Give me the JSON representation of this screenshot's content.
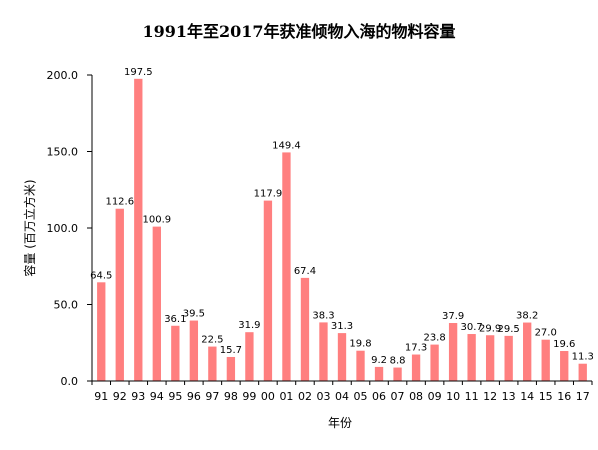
{
  "chart_data": {
    "type": "bar",
    "title": "1991年至2017年获准倾物入海的物料容量",
    "xlabel": "年份",
    "ylabel": "容量 (百万立方米)",
    "ylim": [
      0,
      200
    ],
    "y_ticks": [
      "0.0",
      "50.0",
      "100.0",
      "150.0",
      "200.0"
    ],
    "categories": [
      "91",
      "92",
      "93",
      "94",
      "95",
      "96",
      "97",
      "98",
      "99",
      "00",
      "01",
      "02",
      "03",
      "04",
      "05",
      "06",
      "07",
      "08",
      "09",
      "10",
      "11",
      "12",
      "13",
      "14",
      "15",
      "16",
      "17"
    ],
    "values": [
      64.5,
      112.6,
      197.5,
      100.9,
      36.1,
      39.5,
      22.5,
      15.7,
      31.9,
      117.9,
      149.4,
      67.4,
      38.3,
      31.3,
      19.8,
      9.2,
      8.8,
      17.3,
      23.8,
      37.9,
      30.7,
      29.9,
      29.5,
      38.2,
      27.0,
      19.6,
      11.3
    ],
    "value_labels": [
      "64.5",
      "112.6",
      "197.5",
      "100.9",
      "36.1",
      "39.5",
      "22.5",
      "15.7",
      "31.9",
      "117.9",
      "149.4",
      "67.4",
      "38.3",
      "31.3",
      "19.8",
      "9.2",
      "8.8",
      "17.3",
      "23.8",
      "37.9",
      "30.7",
      "29.9",
      "29.5",
      "38.2",
      "27.0",
      "19.6",
      "11.3"
    ],
    "bar_color": "#ff7f7f",
    "axis_color": "#000000",
    "grid": false,
    "legend": "none"
  }
}
